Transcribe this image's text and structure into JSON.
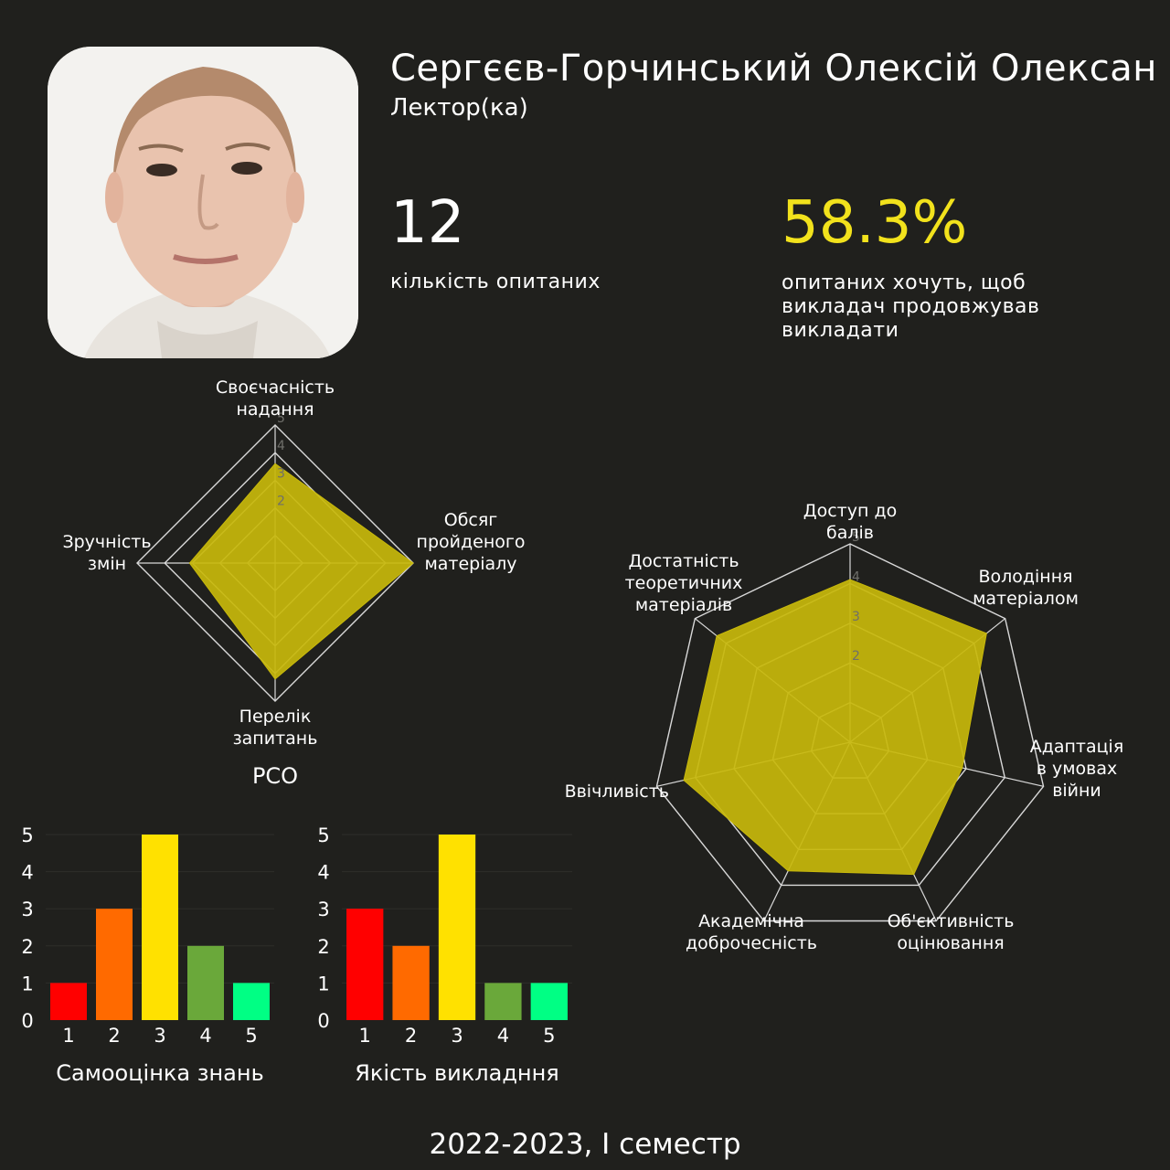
{
  "profile": {
    "name": "Сергєєв-Горчинський Олексій Олексан",
    "role": "Лектор(ка)",
    "photo_icon": "person-portrait-photo"
  },
  "stats": {
    "respondents_value": "12",
    "respondents_label": "кількість опитаних",
    "continue_value": "58.3%",
    "continue_label": "опитаних хочуть, щоб викладач продовжував викладати"
  },
  "colors": {
    "background": "#20201d",
    "accent_yellow": "#f2e21c",
    "radar_fill": "#c8b90b",
    "bar_colors": [
      "#ff0000",
      "#ff6a00",
      "#ffe100",
      "#6aa83a",
      "#00ff84"
    ]
  },
  "chart_data": [
    {
      "type": "radar",
      "title": "РСО",
      "axes": [
        [
          "Своєчасність",
          "надання"
        ],
        [
          "Обсяг",
          "пройденого",
          "матеріалу"
        ],
        [
          "Перелік",
          "запитань"
        ],
        [
          "Зручність",
          "змін"
        ]
      ],
      "values": [
        3.6,
        5.0,
        4.2,
        3.1
      ],
      "ticks": [
        "2",
        "3",
        "4",
        "5"
      ],
      "range": [
        1,
        5
      ]
    },
    {
      "type": "radar",
      "title": "",
      "axes": [
        [
          "Доступ до",
          "балів"
        ],
        [
          "Володіння",
          "матеріалом"
        ],
        [
          "Адаптація",
          "в умовах",
          "війни"
        ],
        [
          "Об'єктивність",
          "оцінювання"
        ],
        [
          "Академічна",
          "доброчесність"
        ],
        [
          "Ввічливість"
        ],
        [
          "Достатність",
          "теоретичних",
          "матеріалів"
        ]
      ],
      "values": [
        4.1,
        4.4,
        2.9,
        3.7,
        3.6,
        4.3,
        4.3
      ],
      "ticks": [
        "2",
        "3",
        "4",
        "5"
      ],
      "range": [
        1,
        5
      ]
    },
    {
      "type": "bar",
      "title": "Самооцінка знань",
      "categories": [
        "1",
        "2",
        "3",
        "4",
        "5"
      ],
      "values": [
        1,
        3,
        5,
        2,
        1
      ],
      "yticks": [
        "0",
        "1",
        "2",
        "3",
        "4",
        "5"
      ],
      "ylim": [
        0,
        5
      ]
    },
    {
      "type": "bar",
      "title": "Якість викладння",
      "categories": [
        "1",
        "2",
        "3",
        "4",
        "5"
      ],
      "values": [
        3,
        2,
        5,
        1,
        1
      ],
      "yticks": [
        "0",
        "1",
        "2",
        "3",
        "4",
        "5"
      ],
      "ylim": [
        0,
        5
      ]
    }
  ],
  "footer": {
    "period": "2022-2023, І семестр"
  }
}
